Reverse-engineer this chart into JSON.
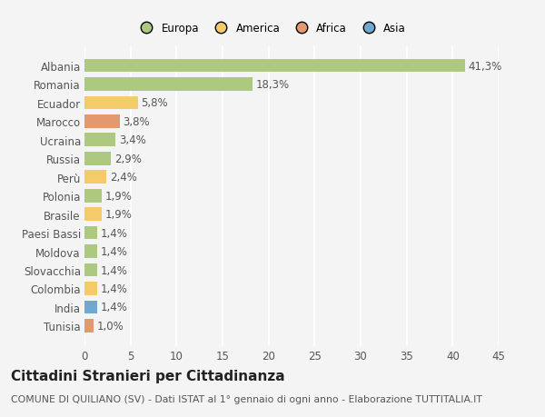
{
  "countries": [
    "Albania",
    "Romania",
    "Ecuador",
    "Marocco",
    "Ucraina",
    "Russia",
    "Perù",
    "Polonia",
    "Brasile",
    "Paesi Bassi",
    "Moldova",
    "Slovacchia",
    "Colombia",
    "India",
    "Tunisia"
  ],
  "values": [
    41.3,
    18.3,
    5.8,
    3.8,
    3.4,
    2.9,
    2.4,
    1.9,
    1.9,
    1.4,
    1.4,
    1.4,
    1.4,
    1.4,
    1.0
  ],
  "labels": [
    "41,3%",
    "18,3%",
    "5,8%",
    "3,8%",
    "3,4%",
    "2,9%",
    "2,4%",
    "1,9%",
    "1,9%",
    "1,4%",
    "1,4%",
    "1,4%",
    "1,4%",
    "1,4%",
    "1,0%"
  ],
  "continent": [
    "Europa",
    "Europa",
    "America",
    "Africa",
    "Europa",
    "Europa",
    "America",
    "Europa",
    "America",
    "Europa",
    "Europa",
    "Europa",
    "America",
    "Asia",
    "Africa"
  ],
  "colors": {
    "Europa": "#adc97f",
    "America": "#f5cb6a",
    "Africa": "#e49870",
    "Asia": "#6fa8d0"
  },
  "xlim": [
    0,
    45
  ],
  "xticks": [
    0,
    5,
    10,
    15,
    20,
    25,
    30,
    35,
    40,
    45
  ],
  "title": "Cittadini Stranieri per Cittadinanza",
  "subtitle": "COMUNE DI QUILIANO (SV) - Dati ISTAT al 1° gennaio di ogni anno - Elaborazione TUTTITALIA.IT",
  "background_color": "#f4f4f4",
  "plot_bg_color": "#f4f4f4",
  "grid_color": "#ffffff",
  "bar_height": 0.72,
  "label_fontsize": 8.5,
  "tick_fontsize": 8.5,
  "title_fontsize": 11,
  "subtitle_fontsize": 7.8,
  "legend_entries": [
    "Europa",
    "America",
    "Africa",
    "Asia"
  ]
}
